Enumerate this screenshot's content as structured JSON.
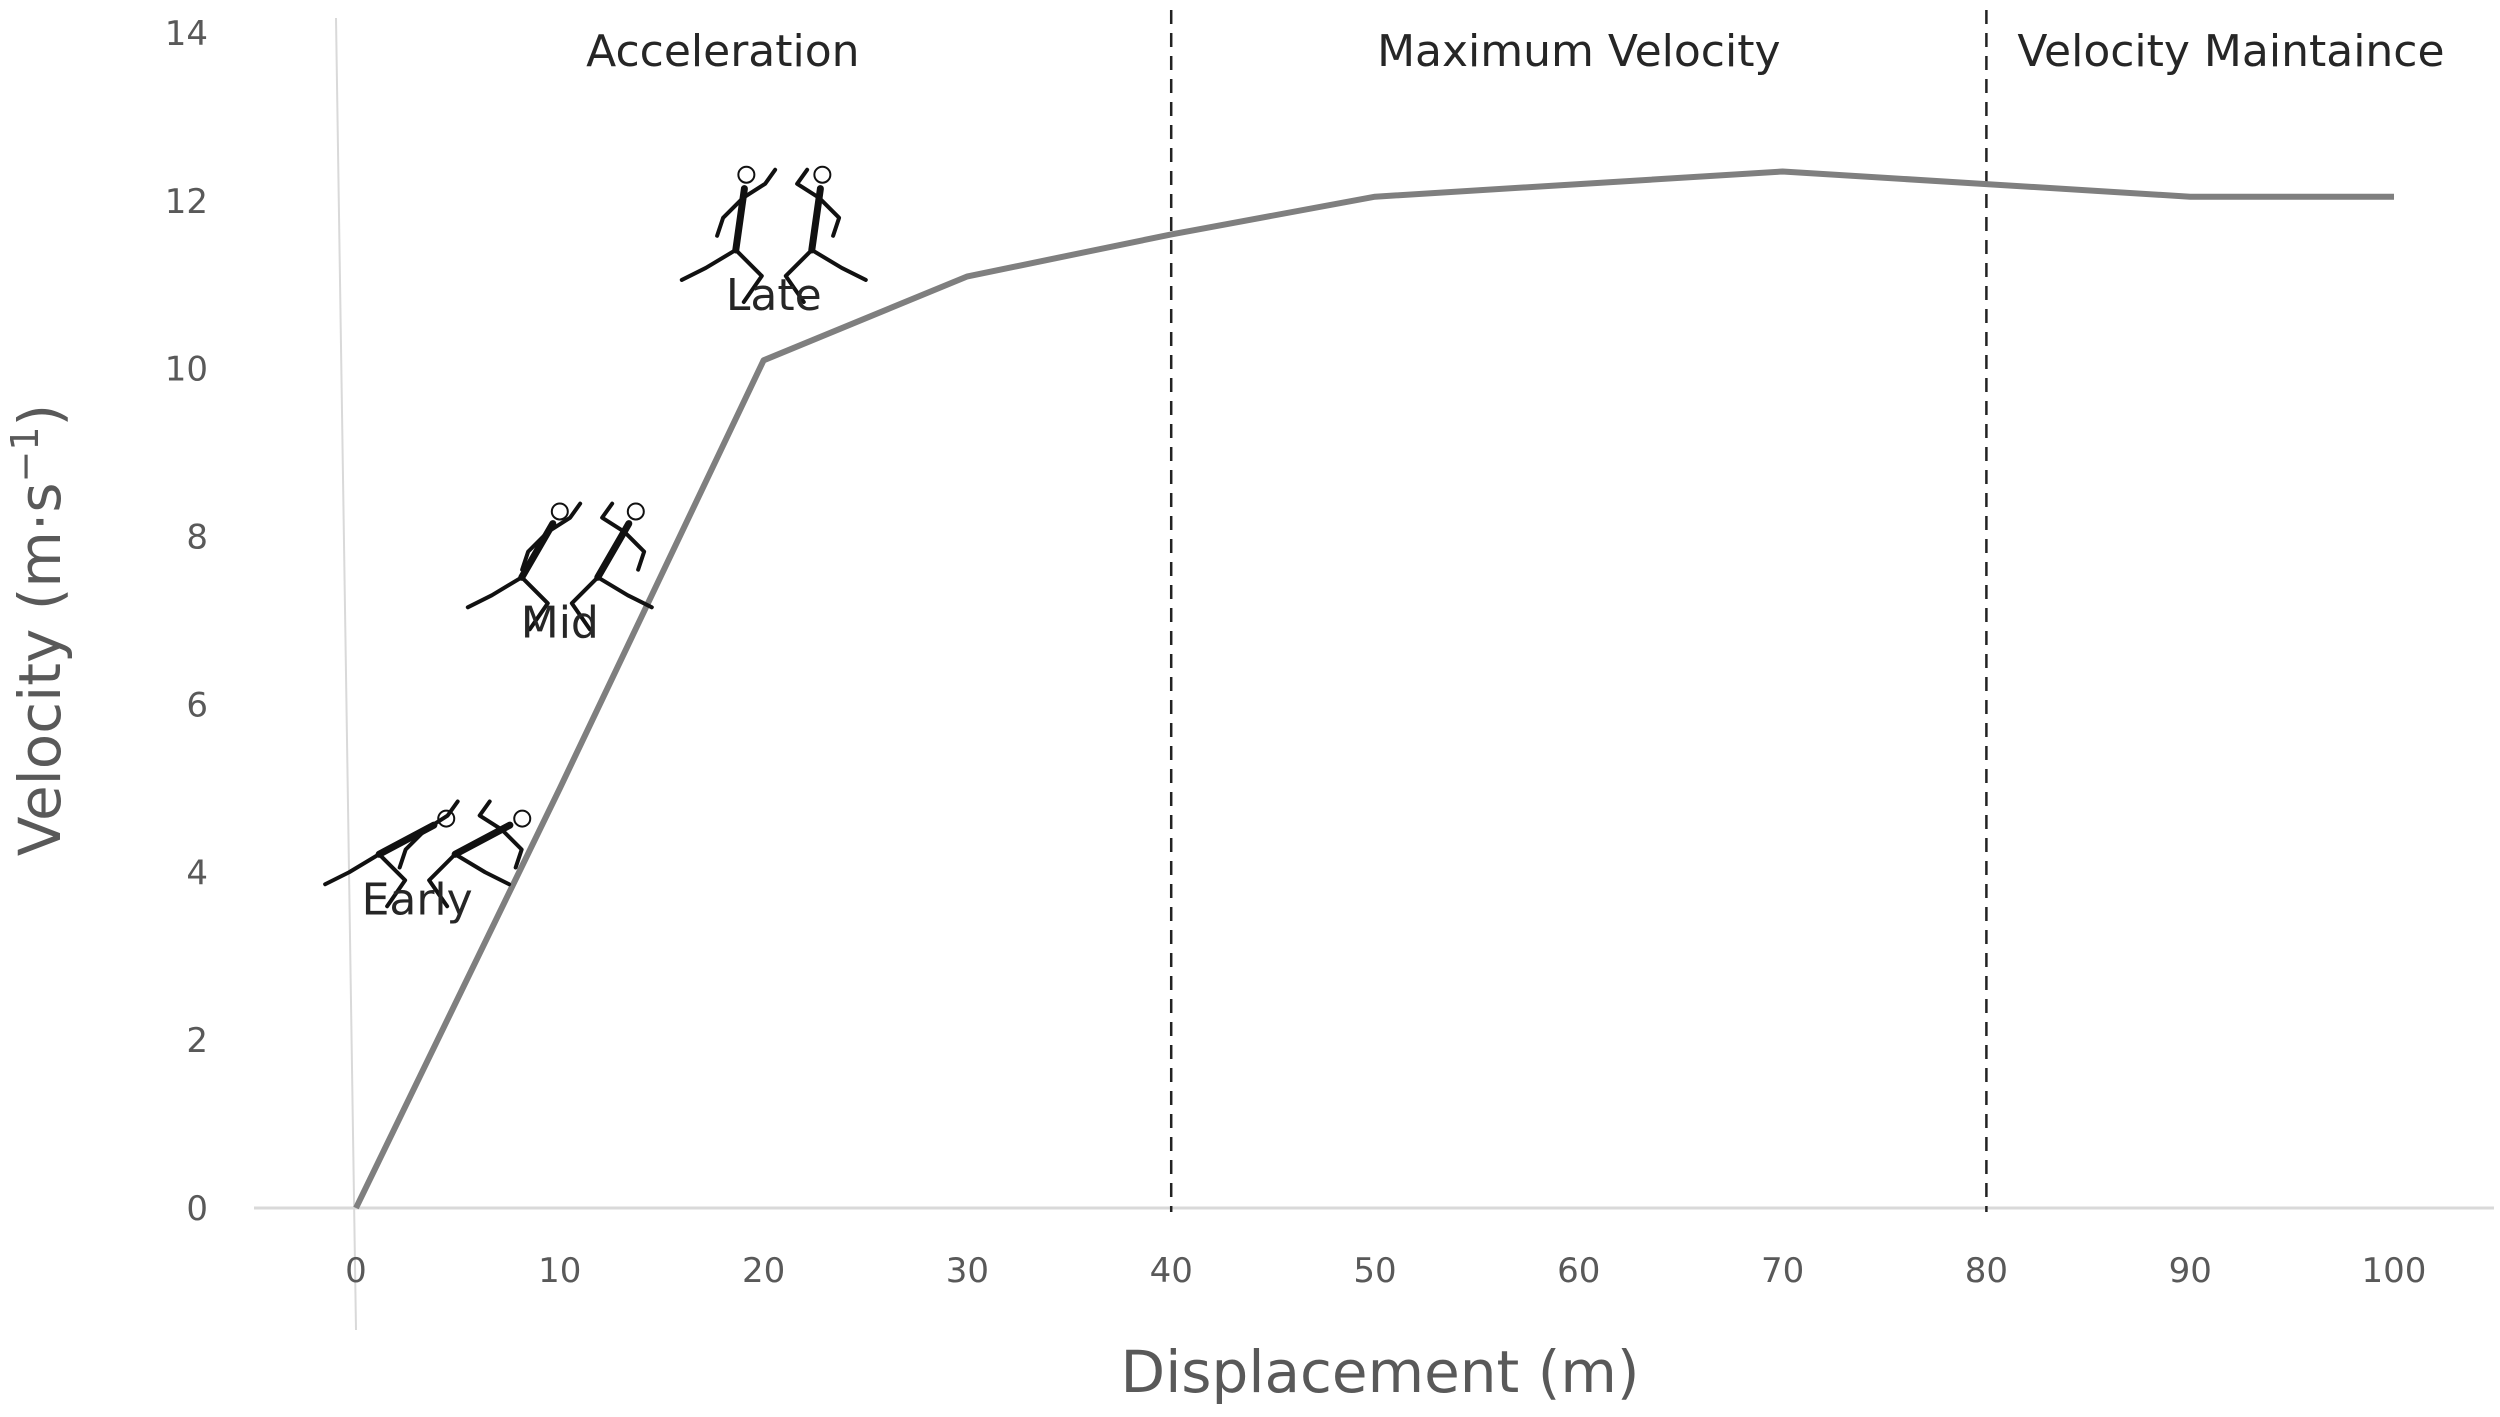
{
  "chart_data": {
    "type": "line",
    "xlabel": "Displacement (m)",
    "ylabel_main": "Velocity (m·s",
    "ylabel_sup": "−1",
    "ylabel_close": ")",
    "xlim": [
      0,
      100
    ],
    "ylim": [
      0,
      14
    ],
    "x_ticks": [
      0,
      10,
      20,
      30,
      40,
      50,
      60,
      70,
      80,
      90,
      100
    ],
    "y_ticks": [
      0,
      2,
      4,
      6,
      8,
      10,
      12,
      14
    ],
    "grid": false,
    "series": [
      {
        "x": [
          0,
          10,
          20,
          30,
          40,
          50,
          60,
          70,
          80,
          90,
          100
        ],
        "y": [
          0,
          5.0,
          10.1,
          11.1,
          11.6,
          12.05,
          12.2,
          12.35,
          12.2,
          12.05,
          12.05
        ]
      }
    ],
    "phase_boundaries": [
      40,
      80
    ],
    "phases": [
      {
        "label": "Acceleration",
        "x_center": 18
      },
      {
        "label": "Maximum Velocity",
        "x_center": 60
      },
      {
        "label": "Velocity Maintaince",
        "x_center": 92
      }
    ],
    "stages": [
      {
        "label": "Early",
        "x": 3,
        "y": 3.5
      },
      {
        "label": "Mid",
        "x": 10,
        "y": 6.8
      },
      {
        "label": "Late",
        "x": 20.5,
        "y": 10.7
      }
    ],
    "colors": {
      "line": "#7f7f7f",
      "axis": "#d9d9d9",
      "divider": "#222222"
    }
  }
}
